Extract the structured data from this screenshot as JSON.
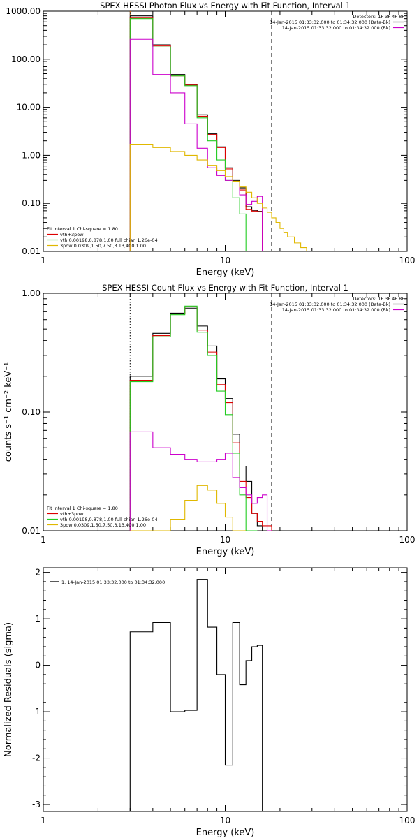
{
  "figure": {
    "background": "#ffffff"
  },
  "chart_data": [
    {
      "type": "line",
      "title": "SPEX HESSI Photon Flux vs Energy with Fit Function, Interval 1",
      "xlabel": "Energy (keV)",
      "ylabel": "",
      "xscale": "log",
      "yscale": "log",
      "xlim": [
        1,
        100
      ],
      "ylim": [
        0.01,
        1000
      ],
      "xticks": [
        1,
        10,
        100
      ],
      "xticklabels": [
        "1",
        "10",
        "100"
      ],
      "yticks": [
        0.01,
        0.1,
        1,
        10,
        100,
        1000
      ],
      "yticklabels": [
        "0.01",
        "0.10",
        "1.00",
        "10.00",
        "100.00",
        "1000.00"
      ],
      "edges": [
        3,
        4,
        5,
        6,
        7,
        8,
        9,
        10,
        11,
        12,
        13,
        14,
        15,
        16,
        17,
        18,
        19,
        20,
        21,
        22,
        24,
        26,
        28
      ],
      "vlines": [
        {
          "x": 3,
          "style": "dotted",
          "color": "#e07000"
        },
        {
          "x": 18,
          "style": "dashed",
          "color": "#000000"
        }
      ],
      "legend_top": {
        "header": "Detectors: 1F 3F 4F 8F",
        "items": [
          {
            "label": "14-Jan-2015 01:33:32.000 to 01:34:32.000 (Data-Bk)",
            "color": "#000000"
          },
          {
            "label": "14-Jan-2015 01:33:32.000 to 01:34:32.000 (Bk)",
            "color": "#cc00cc"
          }
        ]
      },
      "legend_bottom": {
        "header": "Fit Interval 1    Chi-square = 1.80",
        "items": [
          {
            "label": "vth+3pow",
            "color": "#dd0000"
          },
          {
            "label": "vth 0.00198,0.878,1.00   full chian 1.26e-04",
            "color": "#22cc22"
          },
          {
            "label": "3pow 0.0309,1.50,7.50,3.13,400,1.00",
            "color": "#e0b800"
          }
        ]
      },
      "series": [
        {
          "color": "#000000",
          "values": [
            800,
            200,
            48,
            30,
            7,
            2.8,
            1.5,
            0.55,
            0.3,
            0.21,
            0.085,
            0.072,
            0.068
          ]
        },
        {
          "color": "#dd0000",
          "values": [
            720,
            190,
            45,
            29,
            6.5,
            2.7,
            1.45,
            0.52,
            0.28,
            0.19,
            0.075,
            0.069,
            0.067
          ]
        },
        {
          "color": "#22cc22",
          "values": [
            700,
            180,
            45,
            28,
            6.0,
            2.0,
            0.8,
            0.3,
            0.13,
            0.06,
            0.01
          ]
        },
        {
          "color": "#cc00cc",
          "values": [
            260,
            48,
            20,
            4.5,
            1.4,
            0.55,
            0.38,
            0.3,
            0.28,
            0.15,
            0.095,
            0.11,
            0.14,
            0.01
          ]
        },
        {
          "color": "#e0b800",
          "values": [
            1.7,
            1.45,
            1.2,
            1.0,
            0.8,
            0.62,
            0.48,
            0.36,
            0.29,
            0.22,
            0.17,
            0.13,
            0.1,
            0.08,
            0.065,
            0.05,
            0.04,
            0.03,
            0.025,
            0.02,
            0.015,
            0.012
          ]
        }
      ]
    },
    {
      "type": "line",
      "title": "SPEX HESSI Count Flux vs Energy with Fit Function, Interval 1",
      "xlabel": "Energy (keV)",
      "ylabel": "counts s⁻¹ cm⁻² keV⁻¹",
      "xscale": "log",
      "yscale": "log",
      "xlim": [
        1,
        100
      ],
      "ylim": [
        0.01,
        1
      ],
      "xticks": [
        1,
        10,
        100
      ],
      "xticklabels": [
        "1",
        "10",
        "100"
      ],
      "yticks": [
        0.01,
        0.1,
        1
      ],
      "yticklabels": [
        "0.01",
        "0.10",
        "1.00"
      ],
      "edges": [
        3,
        4,
        5,
        6,
        7,
        8,
        9,
        10,
        11,
        12,
        13,
        14,
        15,
        16,
        17,
        18
      ],
      "vlines": [
        {
          "x": 3,
          "style": "dotted",
          "color": "#000000"
        },
        {
          "x": 18,
          "style": "dashed",
          "color": "#000000"
        }
      ],
      "legend_top": {
        "header": "Detectors: 1F 3F 4F 8F",
        "items": [
          {
            "label": "14-Jan-2015 01:33:32.000 to 01:34:32.000 (Data-Bk)",
            "color": "#000000"
          },
          {
            "label": "14-Jan-2015 01:33:32.000 to 01:34:32.000 (Bk)",
            "color": "#cc00cc"
          }
        ]
      },
      "legend_bottom": {
        "header": "Fit Interval 1    Chi-square = 1.80",
        "items": [
          {
            "label": "vth+3pow",
            "color": "#dd0000"
          },
          {
            "label": "vth 0.00198,0.878,1.00   full chian 1.26e-04",
            "color": "#22cc22"
          },
          {
            "label": "3pow 0.0309,1.50,7.50,3.13,400,1.00",
            "color": "#e0b800"
          }
        ]
      },
      "series": [
        {
          "color": "#000000",
          "values": [
            0.2,
            0.46,
            0.68,
            0.75,
            0.53,
            0.36,
            0.19,
            0.13,
            0.065,
            0.035,
            0.026,
            0.014,
            0.011,
            0.01,
            0.01
          ]
        },
        {
          "color": "#dd0000",
          "values": [
            0.185,
            0.44,
            0.67,
            0.77,
            0.49,
            0.32,
            0.17,
            0.12,
            0.055,
            0.026,
            0.019,
            0.014,
            0.012,
            0.011,
            0.011
          ]
        },
        {
          "color": "#22cc22",
          "values": [
            0.18,
            0.43,
            0.66,
            0.78,
            0.47,
            0.3,
            0.15,
            0.095,
            0.045,
            0.02,
            0.01,
            0.01
          ]
        },
        {
          "color": "#cc00cc",
          "values": [
            0.068,
            0.05,
            0.044,
            0.04,
            0.038,
            0.038,
            0.04,
            0.045,
            0.028,
            0.023,
            0.02,
            0.017,
            0.019,
            0.02,
            0.01
          ]
        },
        {
          "color": "#e0b800",
          "values": [
            0.01,
            0.01,
            0.0125,
            0.018,
            0.024,
            0.022,
            0.017,
            0.013,
            0.01,
            0.01
          ]
        }
      ]
    },
    {
      "type": "line",
      "title": "",
      "xlabel": "Energy (keV)",
      "ylabel": "Normalized Residuals (sigma)",
      "xscale": "log",
      "yscale": "linear",
      "xlim": [
        1,
        100
      ],
      "ylim": [
        -3.15,
        2.1
      ],
      "xticks": [
        1,
        10,
        100
      ],
      "xticklabels": [
        "1",
        "10",
        "100"
      ],
      "yticks": [
        -3,
        -2,
        -1,
        0,
        1,
        2
      ],
      "yticklabels": [
        "-3",
        "-2",
        "-1",
        "0",
        "1",
        "2"
      ],
      "edges": [
        3,
        4,
        5,
        6,
        7,
        8,
        9,
        10,
        11,
        12,
        13,
        14,
        15,
        16,
        17,
        18
      ],
      "vlines": [],
      "legend_top": {
        "header": "",
        "items": [
          {
            "label": "1. 14-Jan-2015 01:33:32.000 to 01:34:32.000",
            "color": "#000000"
          }
        ]
      },
      "legend_bottom": {
        "header": "",
        "items": []
      },
      "series": [
        {
          "color": "#000000",
          "values": [
            0.72,
            0.92,
            -1.0,
            -0.97,
            1.85,
            0.82,
            -0.2,
            -2.15,
            0.92,
            -0.42,
            0.1,
            0.4,
            0.43
          ]
        }
      ]
    }
  ]
}
